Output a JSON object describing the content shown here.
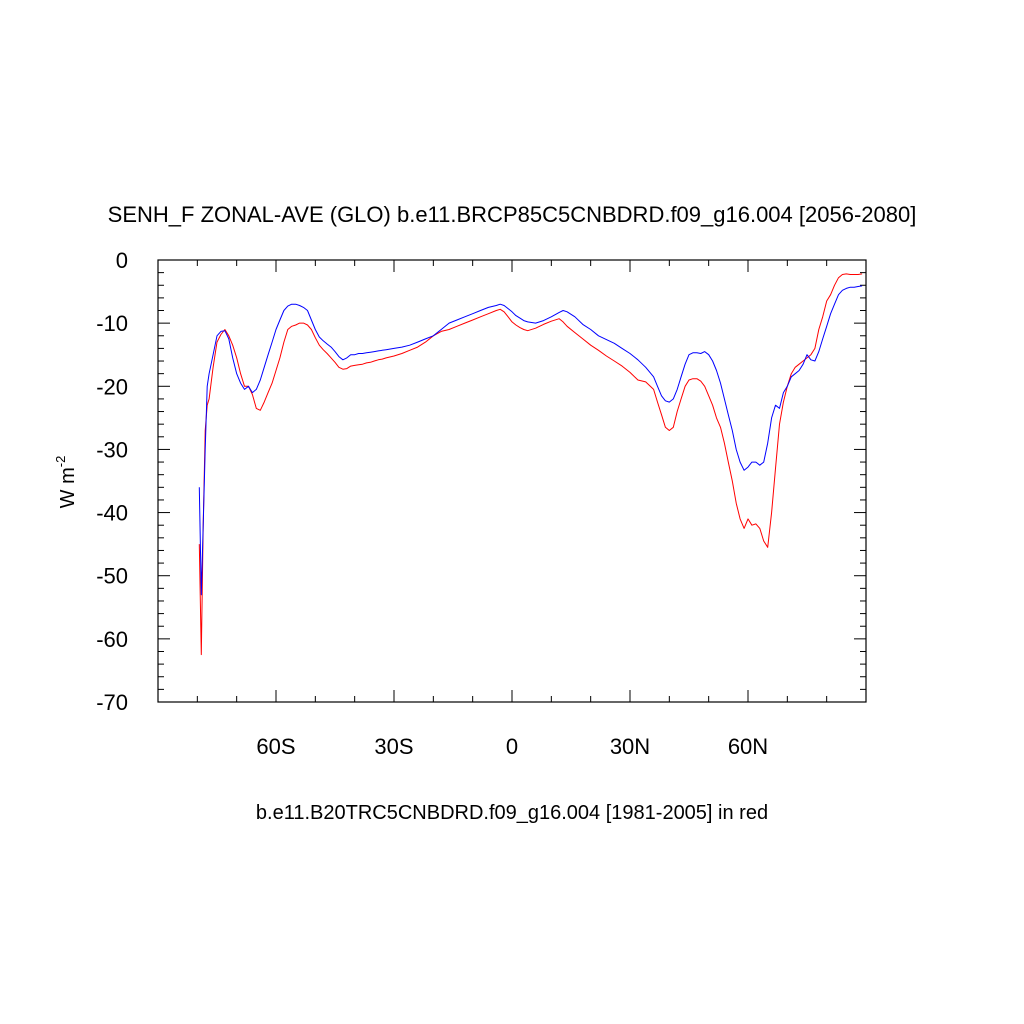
{
  "chart_data": {
    "type": "line",
    "title": "SENH_F ZONAL-AVE (GLO) b.e11.BRCP85C5CNBDRD.f09_g16.004 [2056-2080]",
    "xlabel": "b.e11.B20TRC5CNBDRD.f09_g16.004 [1981-2005] in red",
    "ylabel": "W m",
    "ylabel_superscript": "-2",
    "xlim": [
      -90,
      90
    ],
    "ylim": [
      -70,
      0
    ],
    "y_ticks": [
      0,
      -10,
      -20,
      -30,
      -40,
      -50,
      -60,
      -70
    ],
    "y_tick_labels": [
      "0",
      "-10",
      "-20",
      "-30",
      "-40",
      "-50",
      "-60",
      "-70"
    ],
    "x_ticks": [
      -60,
      -30,
      0,
      30,
      60
    ],
    "x_tick_labels": [
      "60S",
      "30S",
      "0",
      "30N",
      "60N"
    ],
    "grid": false,
    "series": [
      {
        "color": "#0000ff",
        "x": [
          -79.5,
          -79,
          -78.5,
          -78,
          -77.5,
          -77,
          -76,
          -75,
          -74,
          -73,
          -72,
          -71,
          -70,
          -69,
          -68,
          -67,
          -66,
          -65,
          -64,
          -63,
          -62,
          -61,
          -60,
          -59,
          -58,
          -57,
          -56,
          -55,
          -54,
          -53,
          -52,
          -51,
          -50,
          -49,
          -48,
          -47,
          -46,
          -45,
          -44,
          -43,
          -42,
          -41,
          -40,
          -39,
          -38,
          -37,
          -36,
          -35,
          -34,
          -33,
          -32,
          -30,
          -28,
          -26,
          -24,
          -22,
          -20,
          -18,
          -16,
          -14,
          -12,
          -10,
          -8,
          -6,
          -4,
          -3,
          -2,
          -1,
          0,
          1,
          2,
          3,
          4,
          6,
          8,
          10,
          12,
          13,
          14,
          16,
          18,
          20,
          22,
          24,
          26,
          28,
          30,
          32,
          34,
          36,
          37,
          38,
          39,
          40,
          41,
          42,
          43,
          44,
          45,
          46,
          47,
          48,
          49,
          50,
          51,
          52,
          53,
          54,
          55,
          56,
          57,
          58,
          59,
          60,
          61,
          62,
          63,
          64,
          65,
          66,
          67,
          68,
          69,
          70,
          71,
          72,
          73,
          74,
          75,
          76,
          77,
          78,
          79,
          80,
          81,
          82,
          83,
          84,
          85,
          86,
          87,
          88,
          89
        ],
        "values": [
          -36,
          -53,
          -42,
          -30,
          -20,
          -18,
          -15,
          -12,
          -11.3,
          -11.2,
          -12.5,
          -15.5,
          -18,
          -19.5,
          -20.5,
          -20,
          -21,
          -20.5,
          -19,
          -17,
          -15,
          -13,
          -11,
          -9.5,
          -8,
          -7.3,
          -7,
          -7,
          -7.2,
          -7.5,
          -8,
          -9.5,
          -11,
          -12.2,
          -12.8,
          -13.3,
          -13.8,
          -14.5,
          -15.3,
          -15.8,
          -15.5,
          -15,
          -15,
          -14.8,
          -14.8,
          -14.7,
          -14.6,
          -14.5,
          -14.4,
          -14.3,
          -14.2,
          -14,
          -13.8,
          -13.5,
          -13,
          -12.5,
          -12,
          -11,
          -10,
          -9.5,
          -9,
          -8.5,
          -8,
          -7.5,
          -7.2,
          -7,
          -7.2,
          -7.7,
          -8.2,
          -8.8,
          -9.2,
          -9.6,
          -9.8,
          -10,
          -9.6,
          -9,
          -8.3,
          -8,
          -8.2,
          -9,
          -10.2,
          -11,
          -12,
          -12.6,
          -13.2,
          -14,
          -14.8,
          -15.8,
          -17,
          -18.5,
          -20,
          -21.5,
          -22.3,
          -22.5,
          -22,
          -20.5,
          -18.5,
          -16.5,
          -15,
          -14.7,
          -14.7,
          -14.8,
          -14.5,
          -15,
          -16,
          -17.5,
          -19.5,
          -22,
          -24.5,
          -27,
          -30,
          -32,
          -33.3,
          -32.8,
          -32,
          -32,
          -32.5,
          -32,
          -29,
          -25,
          -23,
          -23.5,
          -21,
          -20,
          -18.5,
          -18,
          -17.5,
          -16.5,
          -15,
          -15.8,
          -16,
          -14.5,
          -12.5,
          -10.5,
          -8.5,
          -7,
          -5.5,
          -4.8,
          -4.5,
          -4.3,
          -4.3,
          -4.2,
          -4.1
        ]
      },
      {
        "color": "#ff0000",
        "x": [
          -79.5,
          -79,
          -78.5,
          -78,
          -77.5,
          -77,
          -76,
          -75,
          -74,
          -73,
          -72,
          -71,
          -70,
          -69,
          -68,
          -67,
          -66,
          -65,
          -64,
          -63,
          -62,
          -61,
          -60,
          -59,
          -58,
          -57,
          -56,
          -55,
          -54,
          -53,
          -52,
          -51,
          -50,
          -49,
          -48,
          -47,
          -46,
          -45,
          -44,
          -43,
          -42,
          -41,
          -40,
          -39,
          -38,
          -37,
          -36,
          -35,
          -34,
          -33,
          -32,
          -30,
          -28,
          -26,
          -24,
          -22,
          -20,
          -18,
          -16,
          -14,
          -12,
          -10,
          -8,
          -6,
          -4,
          -3,
          -2,
          -1,
          0,
          1,
          2,
          3,
          4,
          6,
          8,
          10,
          12,
          13,
          14,
          16,
          18,
          20,
          22,
          24,
          26,
          28,
          30,
          32,
          34,
          36,
          37,
          38,
          39,
          40,
          41,
          42,
          43,
          44,
          45,
          46,
          47,
          48,
          49,
          50,
          51,
          52,
          53,
          54,
          55,
          56,
          57,
          58,
          59,
          60,
          61,
          62,
          63,
          64,
          65,
          66,
          67,
          68,
          69,
          70,
          71,
          72,
          73,
          74,
          75,
          76,
          77,
          78,
          79,
          80,
          81,
          82,
          83,
          84,
          85,
          86,
          87,
          88,
          89
        ],
        "values": [
          -45,
          -62.5,
          -42,
          -27,
          -23,
          -22,
          -17,
          -13,
          -11.8,
          -11,
          -12,
          -13.5,
          -15.5,
          -18,
          -20,
          -20,
          -21.3,
          -23.5,
          -23.8,
          -22.5,
          -21,
          -19.5,
          -17.5,
          -15.5,
          -13,
          -11,
          -10.5,
          -10.3,
          -10,
          -10,
          -10.3,
          -11,
          -12.3,
          -13.5,
          -14.2,
          -14.8,
          -15.5,
          -16.2,
          -17,
          -17.3,
          -17.2,
          -16.8,
          -16.7,
          -16.6,
          -16.5,
          -16.3,
          -16.2,
          -16,
          -15.8,
          -15.7,
          -15.5,
          -15.2,
          -14.8,
          -14.3,
          -13.8,
          -13,
          -12,
          -11.3,
          -11,
          -10.5,
          -10,
          -9.5,
          -9,
          -8.5,
          -8,
          -7.8,
          -8.2,
          -9,
          -9.8,
          -10.3,
          -10.7,
          -11,
          -11.2,
          -10.8,
          -10.2,
          -9.7,
          -9.3,
          -9.8,
          -10.5,
          -11.5,
          -12.5,
          -13.5,
          -14.3,
          -15.2,
          -16,
          -16.8,
          -17.8,
          -19,
          -19.3,
          -20.5,
          -22.5,
          -24.5,
          -26.5,
          -27,
          -26.5,
          -24,
          -22,
          -20,
          -19,
          -18.8,
          -18.8,
          -19.2,
          -20,
          -21.5,
          -23,
          -25,
          -26.5,
          -29,
          -32,
          -35,
          -38.5,
          -41,
          -42.5,
          -41,
          -42,
          -41.8,
          -42.5,
          -44.5,
          -45.5,
          -40,
          -33,
          -26,
          -22.5,
          -20,
          -18,
          -17,
          -16.5,
          -16,
          -15.5,
          -15,
          -14,
          -11,
          -9,
          -6.5,
          -5.5,
          -4,
          -2.8,
          -2.3,
          -2.2,
          -2.3,
          -2.3,
          -2.3,
          -2.2
        ]
      }
    ]
  }
}
